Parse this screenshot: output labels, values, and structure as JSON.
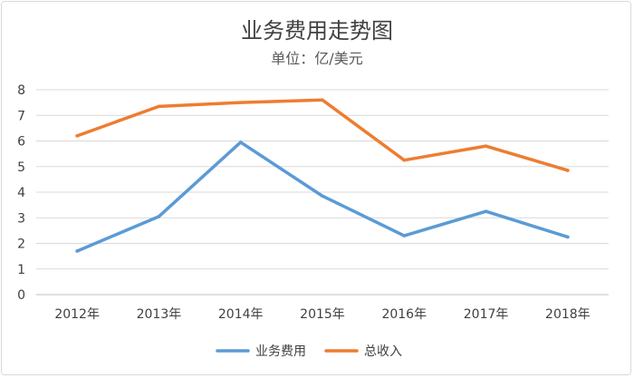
{
  "chart_data": {
    "type": "line",
    "title": "业务费用走势图",
    "subtitle": "单位：亿/美元",
    "categories": [
      "2012年",
      "2013年",
      "2014年",
      "2015年",
      "2016年",
      "2017年",
      "2018年"
    ],
    "ylim": [
      0,
      8
    ],
    "yticks": [
      "0",
      "1",
      "2",
      "3",
      "4",
      "5",
      "6",
      "7",
      "8"
    ],
    "grid": true,
    "legend_position": "bottom",
    "series": [
      {
        "name": "业务费用",
        "color": "#5b9bd5",
        "values": [
          1.7,
          3.05,
          5.95,
          3.85,
          2.3,
          3.25,
          2.25
        ]
      },
      {
        "name": "总收入",
        "color": "#ed7d31",
        "values": [
          6.2,
          7.35,
          7.5,
          7.6,
          5.25,
          5.8,
          4.85
        ]
      }
    ]
  }
}
